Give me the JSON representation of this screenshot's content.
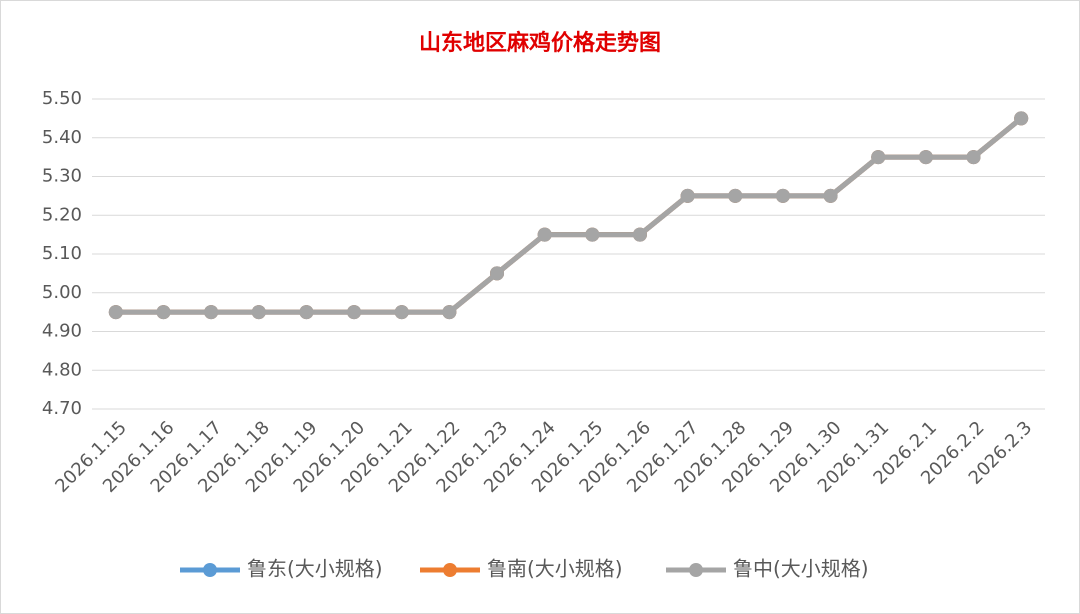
{
  "chart_data": {
    "type": "line",
    "title": "山东地区麻鸡价格走势图",
    "categories": [
      "2026.1.15",
      "2026.1.16",
      "2026.1.17",
      "2026.1.18",
      "2026.1.19",
      "2026.1.20",
      "2026.1.21",
      "2026.1.22",
      "2026.1.23",
      "2026.1.24",
      "2026.1.25",
      "2026.1.26",
      "2026.1.27",
      "2026.1.28",
      "2026.1.29",
      "2026.1.30",
      "2026.1.31",
      "2026.2.1",
      "2026.2.2",
      "2026.2.3"
    ],
    "series": [
      {
        "name": "鲁东(大小规格)",
        "color": "#5b9bd5",
        "values": [
          4.95,
          4.95,
          4.95,
          4.95,
          4.95,
          4.95,
          4.95,
          4.95,
          5.05,
          5.15,
          5.15,
          5.15,
          5.25,
          5.25,
          5.25,
          5.25,
          5.35,
          5.35,
          5.35,
          5.45
        ]
      },
      {
        "name": "鲁南(大小规格)",
        "color": "#ed7d31",
        "values": [
          4.95,
          4.95,
          4.95,
          4.95,
          4.95,
          4.95,
          4.95,
          4.95,
          5.05,
          5.15,
          5.15,
          5.15,
          5.25,
          5.25,
          5.25,
          5.25,
          5.35,
          5.35,
          5.35,
          5.45
        ]
      },
      {
        "name": "鲁中(大小规格)",
        "color": "#a5a5a5",
        "values": [
          4.95,
          4.95,
          4.95,
          4.95,
          4.95,
          4.95,
          4.95,
          4.95,
          5.05,
          5.15,
          5.15,
          5.15,
          5.25,
          5.25,
          5.25,
          5.25,
          5.35,
          5.35,
          5.35,
          5.45
        ]
      }
    ],
    "ylim": [
      4.7,
      5.5
    ],
    "yticks": [
      {
        "value": 4.7,
        "label": "4.70"
      },
      {
        "value": 4.8,
        "label": "4.80"
      },
      {
        "value": 4.9,
        "label": "4.90"
      },
      {
        "value": 5.0,
        "label": "5.00"
      },
      {
        "value": 5.1,
        "label": "5.10"
      },
      {
        "value": 5.2,
        "label": "5.20"
      },
      {
        "value": 5.3,
        "label": "5.30"
      },
      {
        "value": 5.4,
        "label": "5.40"
      },
      {
        "value": 5.5,
        "label": "5.50"
      }
    ],
    "grid": true,
    "legend": "bottom"
  }
}
